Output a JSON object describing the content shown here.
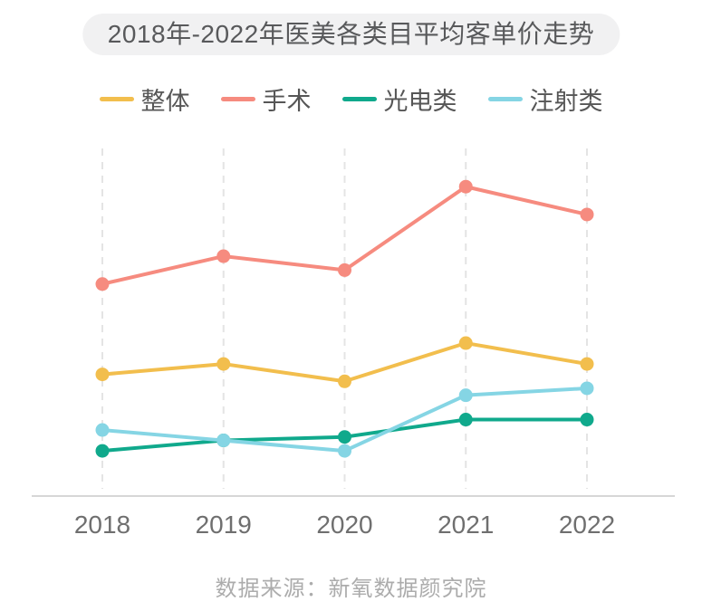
{
  "title": "2018年-2022年医美各类目平均客单价走势",
  "source": "数据来源：新氧数据颜究院",
  "colors": {
    "overall": "#F2BE4D",
    "surgery": "#F68B7F",
    "photoelectric": "#10A98C",
    "injection": "#85D5E4",
    "gridline": "#E4E4E4",
    "axis": "#D7D7D7",
    "x_label": "#6F6F6F"
  },
  "chart_data": {
    "type": "line",
    "title": "2018年-2022年医美各类目平均客单价走势",
    "categories": [
      "2018",
      "2019",
      "2020",
      "2021",
      "2022"
    ],
    "series": [
      {
        "name": "整体",
        "color_key": "overall",
        "values": [
          35,
          38,
          33,
          44,
          38
        ]
      },
      {
        "name": "手术",
        "color_key": "surgery",
        "values": [
          61,
          69,
          65,
          89,
          81
        ]
      },
      {
        "name": "光电类",
        "color_key": "photoelectric",
        "values": [
          13,
          16,
          17,
          22,
          22
        ]
      },
      {
        "name": "注射类",
        "color_key": "injection",
        "values": [
          19,
          16,
          13,
          29,
          31
        ]
      }
    ],
    "xlabel": "",
    "ylabel": "",
    "ylim": [
      0,
      100
    ],
    "y_axis_shown": false,
    "note": "no y-axis ticks in source image; values are relative estimates (percent of plot height)",
    "legend_position": "top",
    "grid": "vertical-dashed"
  }
}
